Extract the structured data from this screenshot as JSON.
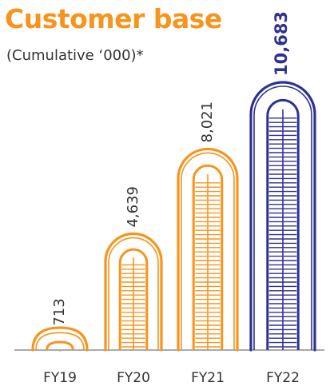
{
  "title": "Customer base",
  "subtitle": "(Cumulative ‘000)*",
  "colors": {
    "orange": "#f7941d",
    "blue": "#2e3192",
    "axis": "#555555",
    "text": "#333333"
  },
  "chart_data": {
    "type": "bar",
    "title": "Customer base",
    "subtitle": "(Cumulative ‘000)*",
    "categories": [
      "FY19",
      "FY20",
      "FY21",
      "FY22"
    ],
    "values": [
      713,
      4639,
      8021,
      10683
    ],
    "value_labels": [
      "713",
      "4,639",
      "8,021",
      "10,683"
    ],
    "highlight_index": 3,
    "ylim": [
      0,
      10683
    ],
    "grid": false,
    "legend": "none"
  }
}
